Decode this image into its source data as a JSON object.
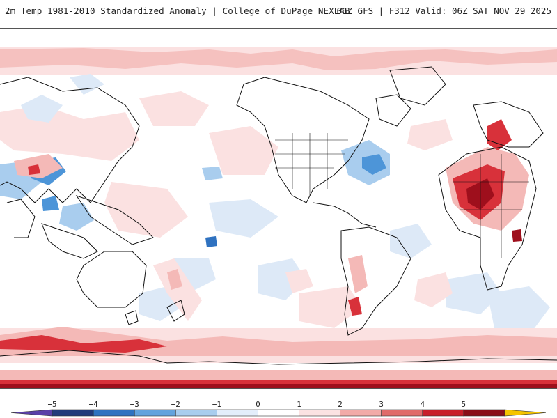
{
  "header": {
    "title_left": "2m Temp 1981-2010 Standardized Anomaly | College of DuPage NEXLAB",
    "title_right": "06Z GFS | F312 Valid: 06Z SAT NOV 29 2025"
  },
  "colorbar": {
    "tick_labels": [
      "−5",
      "−4",
      "−3",
      "−2",
      "−1",
      "0",
      "1",
      "2",
      "3",
      "4",
      "5"
    ],
    "colors": [
      "#5a3fa8",
      "#233a7a",
      "#2f72c0",
      "#63a3dd",
      "#a8cdee",
      "#e3eefb",
      "#ffffff",
      "#fbe2e2",
      "#f2aaa8",
      "#e06a6a",
      "#c81e2a",
      "#8a0d18",
      "#f5c400"
    ]
  },
  "map_colors": {
    "pale_red": "#fbe1e1",
    "light_red": "#f4b9b7",
    "red": "#d8313a",
    "dark_red": "#9e0f1c",
    "pale_blue": "#dde9f7",
    "light_blue": "#a9cdee",
    "blue": "#4d95d8",
    "coast": "#111111"
  }
}
